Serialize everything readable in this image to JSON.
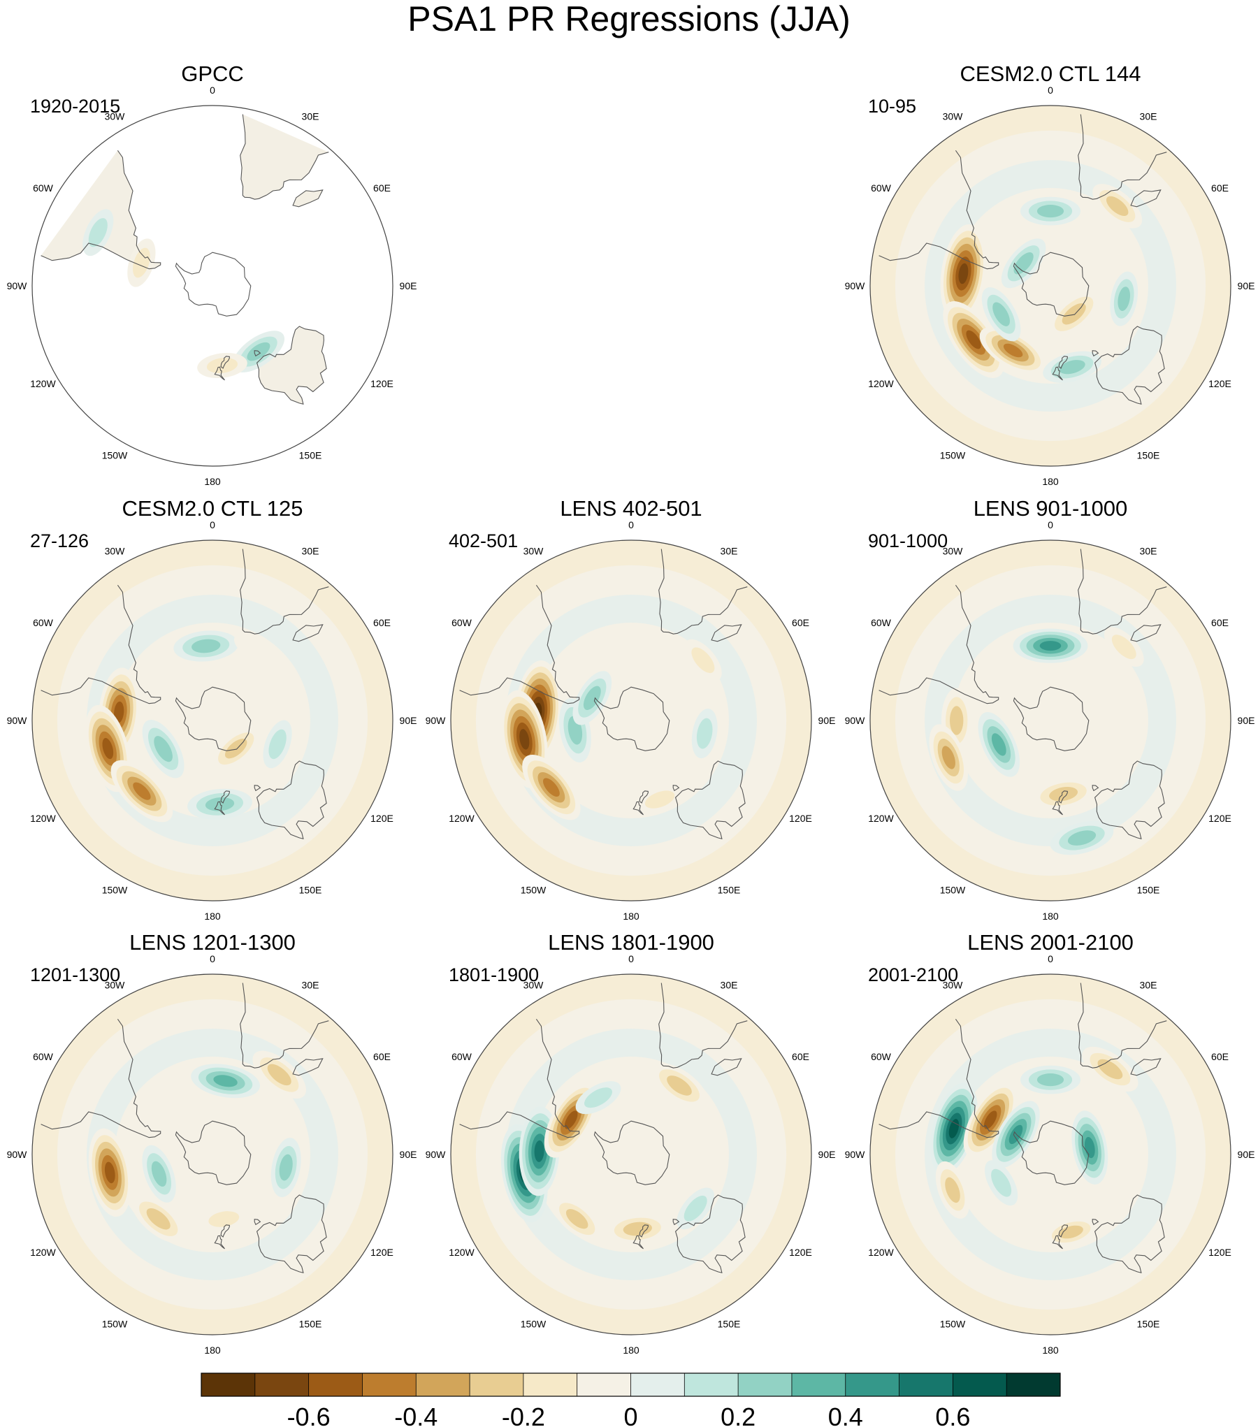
{
  "title": "PSA1 PR Regressions (JJA)",
  "colors": {
    "background": "#ffffff",
    "land": "#f3efe4",
    "coast": "#555555",
    "rim": "#444444"
  },
  "chart_data": {
    "type": "contour",
    "projection": "south-polar-stereographic",
    "variable": "PR regression onto PSA1",
    "season": "JJA",
    "longitude_labels": [
      "0",
      "30E",
      "60E",
      "90E",
      "120E",
      "150E",
      "180",
      "150W",
      "120W",
      "90W",
      "60W",
      "30W"
    ],
    "panels": [
      {
        "id": "gpcc",
        "title": "GPCC",
        "period": "1920-2015",
        "slot": "r0c0",
        "data_extent": "land-only",
        "features": [
          {
            "lon": -65,
            "lat": -20,
            "value": 0.2
          },
          {
            "lon": -72,
            "lat": -45,
            "value": -0.2
          },
          {
            "lon": 145,
            "lat": -42,
            "value": 0.3
          },
          {
            "lon": 173,
            "lat": -42,
            "value": -0.2
          }
        ]
      },
      {
        "id": "ctl144",
        "title": "CESM2.0 CTL 144",
        "period": "10-95",
        "slot": "r0c2",
        "data_extent": "global",
        "features": [
          {
            "lon": 0,
            "lat": -45,
            "value": 0.3
          },
          {
            "lon": 40,
            "lat": -30,
            "value": -0.3
          },
          {
            "lon": 100,
            "lat": -45,
            "value": 0.25
          },
          {
            "lon": -82,
            "lat": -38,
            "value": -0.7
          },
          {
            "lon": -125,
            "lat": -35,
            "value": -0.6
          },
          {
            "lon": -150,
            "lat": -45,
            "value": -0.45
          },
          {
            "lon": -120,
            "lat": -55,
            "value": 0.3
          },
          {
            "lon": 165,
            "lat": -40,
            "value": 0.3
          },
          {
            "lon": 140,
            "lat": -67,
            "value": -0.35
          },
          {
            "lon": -50,
            "lat": -68,
            "value": 0.3
          }
        ]
      },
      {
        "id": "ctl125",
        "title": "CESM2.0 CTL 125",
        "period": "27-126",
        "slot": "r1c0",
        "data_extent": "global",
        "features": [
          {
            "lon": -5,
            "lat": -45,
            "value": 0.35
          },
          {
            "lon": -85,
            "lat": -35,
            "value": -0.6
          },
          {
            "lon": -105,
            "lat": -28,
            "value": -0.6
          },
          {
            "lon": -135,
            "lat": -32,
            "value": -0.5
          },
          {
            "lon": -120,
            "lat": -55,
            "value": 0.35
          },
          {
            "lon": 175,
            "lat": -40,
            "value": 0.35
          },
          {
            "lon": 110,
            "lat": -48,
            "value": 0.2
          },
          {
            "lon": 140,
            "lat": -67,
            "value": -0.3
          },
          {
            "lon": 30,
            "lat": -40,
            "value": -0.15
          }
        ]
      },
      {
        "id": "lens402",
        "title": "LENS 402-501",
        "period": "402-501",
        "slot": "r1c1",
        "data_extent": "global",
        "features": [
          {
            "lon": -85,
            "lat": -35,
            "value": -0.75
          },
          {
            "lon": -100,
            "lat": -28,
            "value": -0.7
          },
          {
            "lon": -130,
            "lat": -30,
            "value": -0.5
          },
          {
            "lon": -100,
            "lat": -55,
            "value": 0.35
          },
          {
            "lon": -60,
            "lat": -62,
            "value": 0.3
          },
          {
            "lon": 100,
            "lat": -45,
            "value": 0.2
          },
          {
            "lon": 50,
            "lat": -35,
            "value": -0.2
          },
          {
            "lon": 160,
            "lat": -40,
            "value": -0.2
          }
        ]
      },
      {
        "id": "lens901",
        "title": "LENS 901-1000",
        "period": "901-1000",
        "slot": "r1c2",
        "data_extent": "global",
        "features": [
          {
            "lon": 0,
            "lat": -45,
            "value": 0.45
          },
          {
            "lon": -90,
            "lat": -35,
            "value": -0.35
          },
          {
            "lon": -110,
            "lat": -28,
            "value": -0.4
          },
          {
            "lon": -115,
            "lat": -55,
            "value": 0.4
          },
          {
            "lon": 170,
            "lat": -45,
            "value": -0.35
          },
          {
            "lon": 165,
            "lat": -22,
            "value": 0.35
          },
          {
            "lon": 45,
            "lat": -30,
            "value": -0.2
          }
        ]
      },
      {
        "id": "lens1201",
        "title": "LENS 1201-1300",
        "period": "1201-1300",
        "slot": "r2c0",
        "data_extent": "global",
        "features": [
          {
            "lon": 10,
            "lat": -45,
            "value": 0.4
          },
          {
            "lon": 40,
            "lat": -30,
            "value": -0.35
          },
          {
            "lon": -100,
            "lat": -30,
            "value": -0.6
          },
          {
            "lon": -140,
            "lat": -40,
            "value": -0.35
          },
          {
            "lon": -110,
            "lat": -55,
            "value": 0.3
          },
          {
            "lon": 100,
            "lat": -45,
            "value": 0.3
          },
          {
            "lon": 170,
            "lat": -50,
            "value": -0.2
          }
        ]
      },
      {
        "id": "lens1801",
        "title": "LENS 1801-1900",
        "period": "1801-1900",
        "slot": "r2c1",
        "data_extent": "global",
        "features": [
          {
            "lon": -100,
            "lat": -28,
            "value": 0.7
          },
          {
            "lon": -88,
            "lat": -36,
            "value": 0.6
          },
          {
            "lon": -60,
            "lat": -48,
            "value": -0.55
          },
          {
            "lon": 35,
            "lat": -40,
            "value": -0.35
          },
          {
            "lon": 175,
            "lat": -45,
            "value": -0.35
          },
          {
            "lon": -140,
            "lat": -40,
            "value": -0.3
          },
          {
            "lon": 130,
            "lat": -40,
            "value": 0.2
          },
          {
            "lon": -30,
            "lat": -50,
            "value": 0.2
          }
        ]
      },
      {
        "id": "lens2001",
        "title": "LENS 2001-2100",
        "period": "2001-2100",
        "slot": "r2c2",
        "data_extent": "global",
        "features": [
          {
            "lon": -75,
            "lat": -32,
            "value": 0.65
          },
          {
            "lon": -60,
            "lat": -48,
            "value": -0.55
          },
          {
            "lon": 0,
            "lat": -45,
            "value": 0.3
          },
          {
            "lon": 35,
            "lat": -30,
            "value": -0.35
          },
          {
            "lon": -60,
            "lat": -65,
            "value": 0.45
          },
          {
            "lon": 80,
            "lat": -65,
            "value": 0.45
          },
          {
            "lon": -110,
            "lat": -30,
            "value": -0.3
          },
          {
            "lon": 165,
            "lat": -42,
            "value": -0.25
          },
          {
            "lon": -120,
            "lat": -55,
            "value": 0.2
          }
        ]
      }
    ],
    "colorbar": {
      "levels": [
        -0.7,
        -0.6,
        -0.5,
        -0.4,
        -0.3,
        -0.2,
        -0.1,
        0,
        0.1,
        0.2,
        0.3,
        0.4,
        0.5,
        0.6,
        0.7
      ],
      "colors": [
        "#5c3407",
        "#7a4610",
        "#9c5b16",
        "#bd7d2e",
        "#d2a55a",
        "#e8cd92",
        "#f6e9c8",
        "#f5f1e6",
        "#e4efec",
        "#bfe6dd",
        "#92d2c4",
        "#5db7a5",
        "#35988a",
        "#17776c",
        "#045a4e",
        "#013a30"
      ],
      "tick_values": [
        -0.6,
        -0.4,
        -0.2,
        0,
        0.2,
        0.4,
        0.6
      ],
      "tick_labels": [
        "-0.6",
        "-0.4",
        "-0.2",
        "0",
        "0.2",
        "0.4",
        "0.6"
      ]
    }
  }
}
